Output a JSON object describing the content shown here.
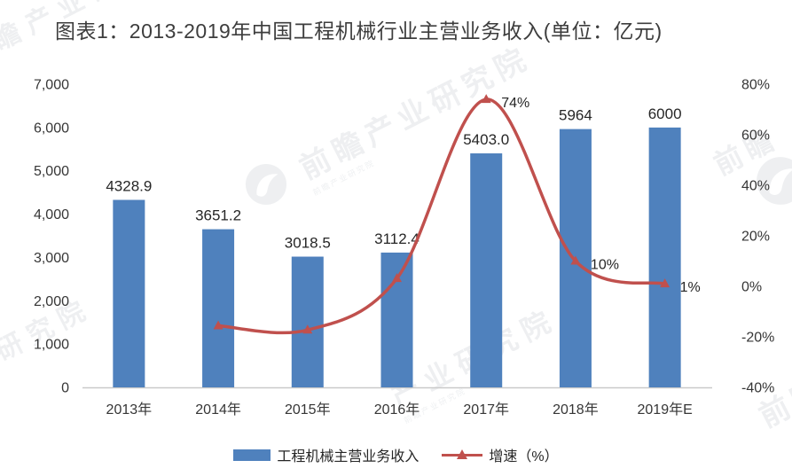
{
  "watermark": {
    "brand": "前瞻产业研究院",
    "fragments": {
      "top_left": "前瞻产业研",
      "center": "前瞻产业研究院",
      "left_bottom": "研究院",
      "bottom_center": "产业研究院",
      "right_top": "前瞻",
      "right_bottom": "前瞻"
    }
  },
  "chart_data": {
    "type": "combo-bar-line",
    "title": "图表1：2013-2019年中国工程机械行业主营业务收入(单位：亿元)",
    "categories": [
      "2013年",
      "2014年",
      "2015年",
      "2016年",
      "2017年",
      "2018年",
      "2019年E"
    ],
    "series": [
      {
        "name": "工程机械主营业务收入",
        "type": "bar",
        "axis": "left",
        "color": "#4f81bd",
        "values": [
          4328.9,
          3651.2,
          3018.5,
          3112.4,
          5403.0,
          5964,
          6000
        ],
        "labels": [
          "4328.9",
          "3651.2",
          "3018.5",
          "3112.4",
          "5403.0",
          "5964",
          "6000"
        ]
      },
      {
        "name": "增速（%）",
        "type": "line",
        "axis": "right",
        "color": "#c0504d",
        "values": [
          null,
          -15.6,
          -17.3,
          3.1,
          74,
          10,
          1
        ],
        "point_labels": [
          null,
          null,
          null,
          null,
          "74%",
          "10%",
          "1%"
        ]
      }
    ],
    "left_axis": {
      "min": 0,
      "max": 7000,
      "ticks": [
        "7,000",
        "6,000",
        "5,000",
        "4,000",
        "3,000",
        "2,000",
        "1,000",
        "0"
      ]
    },
    "right_axis": {
      "min": -40,
      "max": 80,
      "ticks": [
        "80%",
        "60%",
        "40%",
        "20%",
        "0%",
        "-20%",
        "-40%"
      ]
    },
    "legend_position": "bottom",
    "grid": false,
    "text_color": "#363636",
    "axis_line_color": "#c9c9c9"
  }
}
